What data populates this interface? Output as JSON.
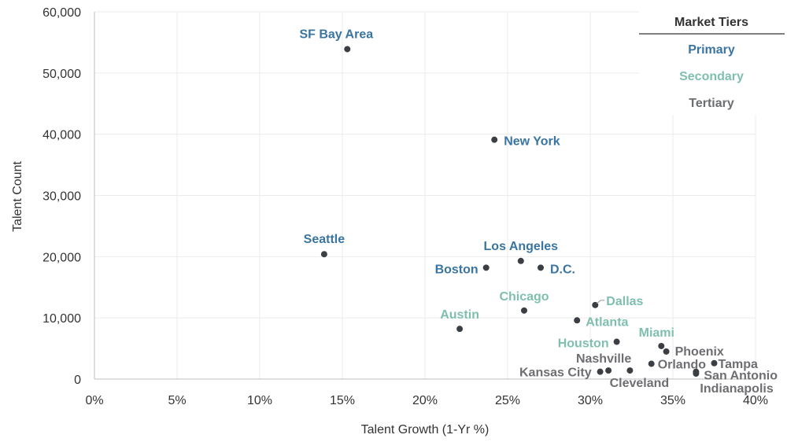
{
  "chart_data": {
    "type": "scatter",
    "xlabel": "Talent Growth (1-Yr %)",
    "ylabel": "Talent Count",
    "xlim": [
      0,
      40
    ],
    "ylim": [
      0,
      60000
    ],
    "x_ticks": [
      0,
      5,
      10,
      15,
      20,
      25,
      30,
      35,
      40
    ],
    "x_tick_labels": [
      "0%",
      "5%",
      "10%",
      "15%",
      "20%",
      "25%",
      "30%",
      "35%",
      "40%"
    ],
    "y_ticks": [
      0,
      10000,
      20000,
      30000,
      40000,
      50000,
      60000
    ],
    "y_tick_labels": [
      "0",
      "10,000",
      "20,000",
      "30,000",
      "40,000",
      "50,000",
      "60,000"
    ],
    "grid": true,
    "legend": {
      "title": "Market Tiers",
      "placement": "top-right",
      "items": [
        {
          "name": "Primary",
          "color": "#3A75A1"
        },
        {
          "name": "Secondary",
          "color": "#7FBFAE"
        },
        {
          "name": "Tertiary",
          "color": "#6D6E71"
        }
      ]
    },
    "marker_color": "#3B3F44",
    "points": [
      {
        "label": "SF Bay Area",
        "x": 15.3,
        "y": 53900,
        "tier": "Primary"
      },
      {
        "label": "New York",
        "x": 24.2,
        "y": 39100,
        "tier": "Primary"
      },
      {
        "label": "Seattle",
        "x": 13.9,
        "y": 20400,
        "tier": "Primary"
      },
      {
        "label": "Los Angeles",
        "x": 25.8,
        "y": 19300,
        "tier": "Primary"
      },
      {
        "label": "Boston",
        "x": 23.7,
        "y": 18200,
        "tier": "Primary"
      },
      {
        "label": "D.C.",
        "x": 27.0,
        "y": 18200,
        "tier": "Primary"
      },
      {
        "label": "Chicago",
        "x": 26.0,
        "y": 11200,
        "tier": "Secondary"
      },
      {
        "label": "Dallas",
        "x": 30.3,
        "y": 12100,
        "tier": "Secondary"
      },
      {
        "label": "Austin",
        "x": 22.1,
        "y": 8200,
        "tier": "Secondary"
      },
      {
        "label": "Atlanta",
        "x": 29.2,
        "y": 9600,
        "tier": "Secondary"
      },
      {
        "label": "Miami",
        "x": 34.3,
        "y": 5400,
        "tier": "Secondary"
      },
      {
        "label": "Houston",
        "x": 31.6,
        "y": 6100,
        "tier": "Secondary"
      },
      {
        "label": "Phoenix",
        "x": 34.6,
        "y": 4500,
        "tier": "Tertiary"
      },
      {
        "label": "Tampa",
        "x": 37.5,
        "y": 2600,
        "tier": "Tertiary"
      },
      {
        "label": "Orlando",
        "x": 33.7,
        "y": 2500,
        "tier": "Tertiary"
      },
      {
        "label": "Nashville",
        "x": 31.1,
        "y": 1400,
        "tier": "Tertiary"
      },
      {
        "label": "San Antonio",
        "x": 36.4,
        "y": 1200,
        "tier": "Tertiary"
      },
      {
        "label": "Kansas City",
        "x": 30.6,
        "y": 1200,
        "tier": "Tertiary"
      },
      {
        "label": "Cleveland",
        "x": 32.4,
        "y": 1400,
        "tier": "Tertiary"
      },
      {
        "label": "Indianapolis",
        "x": 36.4,
        "y": 900,
        "tier": "Tertiary"
      }
    ]
  }
}
